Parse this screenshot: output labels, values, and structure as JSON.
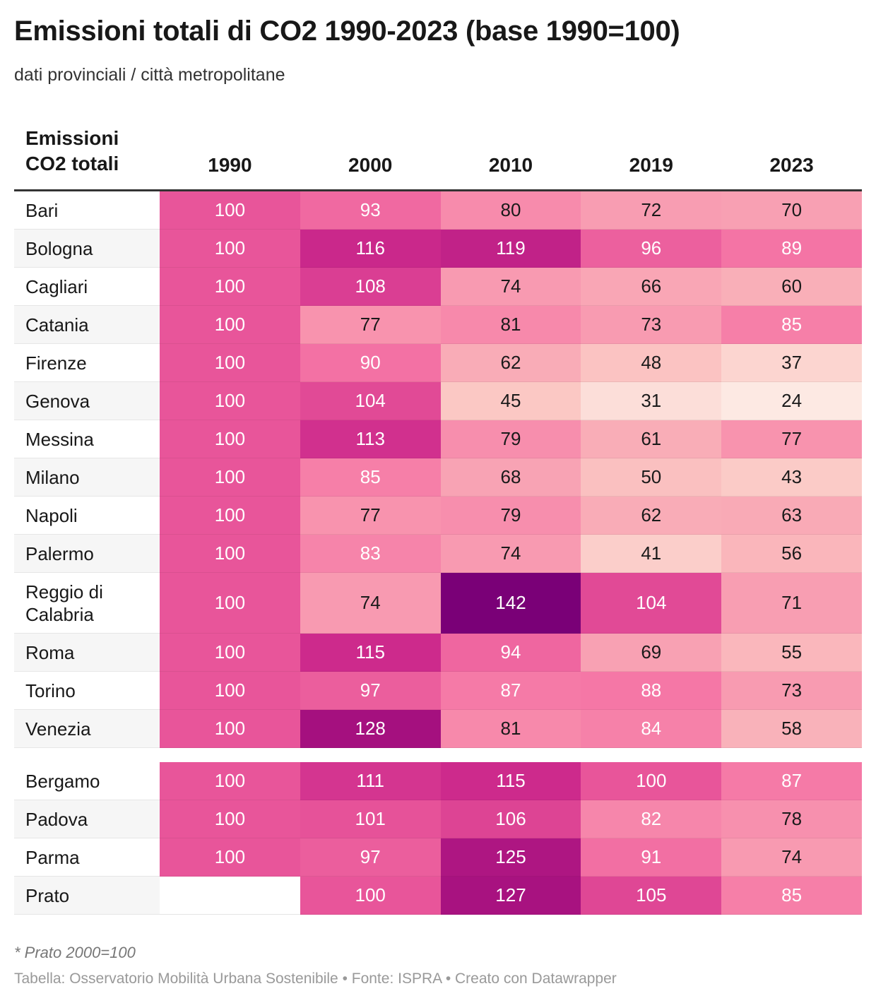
{
  "title": "Emissioni totali di CO2 1990-2023 (base 1990=100)",
  "subtitle": "dati provinciali / città metropolitane",
  "note": "* Prato 2000=100",
  "footer": "Tabella: Osservatorio Mobilità Urbana Sostenibile • Fonte: ISPRA • Creato con Datawrapper",
  "chart_data": {
    "type": "heatmap",
    "row_header": "Emissioni CO2 totali",
    "columns": [
      "1990",
      "2000",
      "2010",
      "2019",
      "2023"
    ],
    "groups": [
      {
        "rows": [
          {
            "name": "Bari",
            "values": [
              100,
              93,
              80,
              72,
              70
            ]
          },
          {
            "name": "Bologna",
            "values": [
              100,
              116,
              119,
              96,
              89
            ]
          },
          {
            "name": "Cagliari",
            "values": [
              100,
              108,
              74,
              66,
              60
            ]
          },
          {
            "name": "Catania",
            "values": [
              100,
              77,
              81,
              73,
              85
            ]
          },
          {
            "name": "Firenze",
            "values": [
              100,
              90,
              62,
              48,
              37
            ]
          },
          {
            "name": "Genova",
            "values": [
              100,
              104,
              45,
              31,
              24
            ]
          },
          {
            "name": "Messina",
            "values": [
              100,
              113,
              79,
              61,
              77
            ]
          },
          {
            "name": "Milano",
            "values": [
              100,
              85,
              68,
              50,
              43
            ]
          },
          {
            "name": "Napoli",
            "values": [
              100,
              77,
              79,
              62,
              63
            ]
          },
          {
            "name": "Palermo",
            "values": [
              100,
              83,
              74,
              41,
              56
            ]
          },
          {
            "name": "Reggio di Calabria",
            "values": [
              100,
              74,
              142,
              104,
              71
            ]
          },
          {
            "name": "Roma",
            "values": [
              100,
              115,
              94,
              69,
              55
            ]
          },
          {
            "name": "Torino",
            "values": [
              100,
              97,
              87,
              88,
              73
            ]
          },
          {
            "name": "Venezia",
            "values": [
              100,
              128,
              81,
              84,
              58
            ]
          }
        ]
      },
      {
        "rows": [
          {
            "name": "Bergamo",
            "values": [
              100,
              111,
              115,
              100,
              87
            ]
          },
          {
            "name": "Padova",
            "values": [
              100,
              101,
              106,
              82,
              78
            ]
          },
          {
            "name": "Parma",
            "values": [
              100,
              97,
              125,
              91,
              74
            ]
          },
          {
            "name": "Prato",
            "values": [
              null,
              100,
              127,
              105,
              85
            ]
          }
        ]
      }
    ],
    "color_scale": [
      [
        24,
        "#fde9e3"
      ],
      [
        45,
        "#fbc8c4"
      ],
      [
        60,
        "#f9afb8"
      ],
      [
        75,
        "#f898b0"
      ],
      [
        88,
        "#f577a6"
      ],
      [
        100,
        "#e8559a"
      ],
      [
        115,
        "#cd2a8c"
      ],
      [
        128,
        "#a5107f"
      ],
      [
        142,
        "#7a0077"
      ]
    ],
    "text_colors": {
      "light": "#ffffff",
      "dark": "#1a1a1a"
    }
  }
}
